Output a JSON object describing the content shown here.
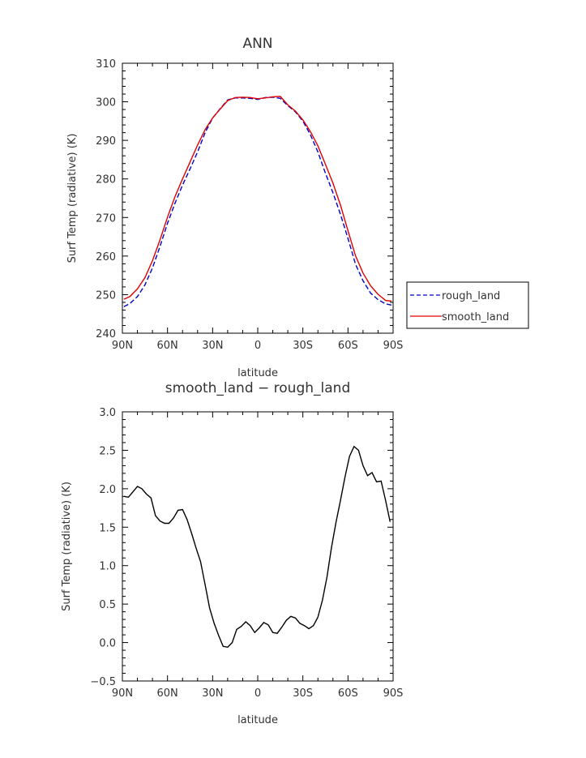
{
  "chart_data": [
    {
      "type": "line",
      "title": "ANN",
      "xlabel": "latitude",
      "ylabel": "Surf Temp (radiative) (K)",
      "xlim": [
        -90,
        90
      ],
      "ylim": [
        240,
        310
      ],
      "x_ticks": [
        -90,
        -60,
        -30,
        0,
        30,
        60,
        90
      ],
      "x_tick_labels": [
        "90N",
        "60N",
        "30N",
        "0",
        "30S",
        "60S",
        "90S"
      ],
      "y_ticks": [
        240,
        250,
        260,
        270,
        280,
        290,
        300,
        310
      ],
      "y_tick_labels": [
        "240",
        "250",
        "260",
        "270",
        "280",
        "290",
        "300",
        "310"
      ],
      "legend_position": "outside-right",
      "series": [
        {
          "name": "rough_land",
          "color": "#0000cc",
          "dash": "dashed",
          "x": [
            -89,
            -85,
            -80,
            -75,
            -70,
            -65,
            -60,
            -55,
            -50,
            -45,
            -40,
            -35,
            -30,
            -25,
            -20,
            -15,
            -10,
            -5,
            0,
            5,
            10,
            15,
            20,
            25,
            30,
            35,
            40,
            45,
            50,
            55,
            60,
            65,
            70,
            75,
            80,
            85,
            89
          ],
          "y": [
            246.9,
            247.7,
            249.5,
            252.5,
            256.9,
            262.5,
            268.5,
            273.7,
            278.4,
            282.6,
            287.0,
            292.0,
            295.8,
            298.2,
            300.5,
            301.0,
            301.0,
            300.9,
            300.6,
            301.1,
            301.2,
            300.9,
            299.0,
            297.4,
            295.0,
            291.5,
            287.0,
            281.5,
            276.4,
            270.8,
            264.6,
            257.9,
            253.6,
            250.4,
            248.7,
            247.6,
            247.3
          ]
        },
        {
          "name": "smooth_land",
          "color": "#e00000",
          "dash": "solid",
          "x": [
            -89,
            -85,
            -80,
            -75,
            -70,
            -65,
            -60,
            -55,
            -50,
            -45,
            -40,
            -35,
            -30,
            -25,
            -20,
            -15,
            -10,
            -5,
            0,
            5,
            10,
            15,
            20,
            25,
            30,
            35,
            40,
            45,
            50,
            55,
            60,
            65,
            70,
            75,
            80,
            85,
            89
          ],
          "y": [
            248.8,
            249.5,
            251.5,
            254.4,
            258.8,
            264.2,
            270.1,
            275.4,
            280.0,
            284.4,
            288.8,
            292.8,
            295.8,
            298.1,
            300.3,
            301.1,
            301.2,
            301.1,
            300.8,
            301.0,
            301.3,
            301.4,
            299.2,
            297.6,
            295.3,
            292.3,
            288.6,
            283.8,
            278.9,
            273.2,
            266.6,
            260.1,
            255.6,
            252.3,
            250.1,
            248.5,
            248.3
          ]
        }
      ]
    },
    {
      "type": "line",
      "title": "smooth_land − rough_land",
      "xlabel": "latitude",
      "ylabel": "Surf Temp (radiative) (K)",
      "xlim": [
        -90,
        90
      ],
      "ylim": [
        -0.5,
        3.0
      ],
      "x_ticks": [
        -90,
        -60,
        -30,
        0,
        30,
        60,
        90
      ],
      "x_tick_labels": [
        "90N",
        "60N",
        "30N",
        "0",
        "30S",
        "60S",
        "90S"
      ],
      "y_ticks": [
        -0.5,
        0.0,
        0.5,
        1.0,
        1.5,
        2.0,
        2.5,
        3.0
      ],
      "y_tick_labels": [
        "−0.5",
        "0.0",
        "0.5",
        "1.0",
        "1.5",
        "2.0",
        "2.5",
        "3.0"
      ],
      "series": [
        {
          "color": "#000000",
          "dash": "solid",
          "x": [
            -89,
            -86,
            -83,
            -80,
            -77,
            -74,
            -71,
            -68,
            -65,
            -62,
            -59,
            -56,
            -53,
            -50,
            -47,
            -44,
            -41,
            -38,
            -35,
            -32,
            -29,
            -26,
            -23,
            -20,
            -17,
            -14,
            -11,
            -8,
            -5,
            -2,
            1,
            4,
            7,
            10,
            13,
            16,
            19,
            22,
            25,
            28,
            31,
            34,
            37,
            40,
            43,
            46,
            49,
            52,
            55,
            58,
            61,
            64,
            67,
            70,
            73,
            76,
            79,
            82,
            85,
            88
          ],
          "y": [
            1.9,
            1.89,
            1.96,
            2.03,
            2.0,
            1.93,
            1.88,
            1.65,
            1.58,
            1.55,
            1.55,
            1.62,
            1.72,
            1.73,
            1.6,
            1.42,
            1.23,
            1.05,
            0.75,
            0.45,
            0.25,
            0.09,
            -0.05,
            -0.06,
            0.0,
            0.17,
            0.21,
            0.27,
            0.22,
            0.13,
            0.19,
            0.26,
            0.23,
            0.13,
            0.12,
            0.2,
            0.29,
            0.34,
            0.32,
            0.25,
            0.22,
            0.18,
            0.22,
            0.33,
            0.55,
            0.85,
            1.23,
            1.56,
            1.85,
            2.15,
            2.42,
            2.55,
            2.5,
            2.3,
            2.17,
            2.21,
            2.09,
            2.1,
            1.85,
            1.57
          ]
        }
      ]
    }
  ]
}
